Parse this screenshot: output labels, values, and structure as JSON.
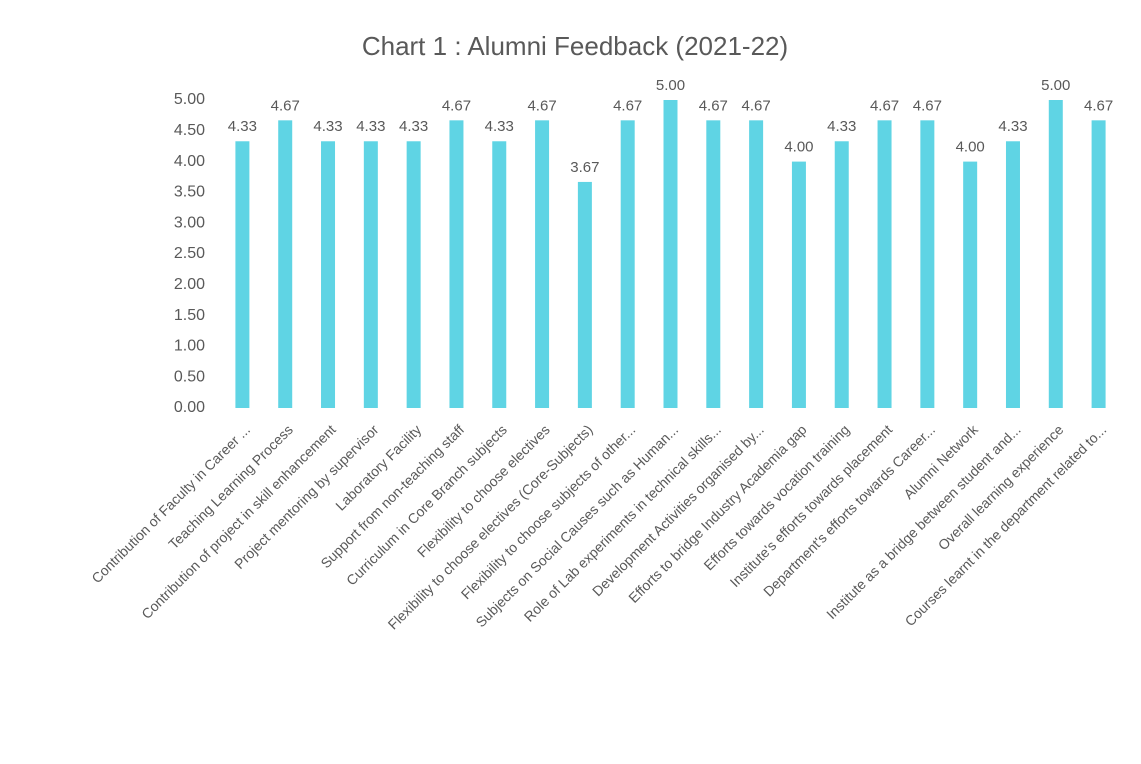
{
  "chart_data": {
    "type": "bar",
    "title": "Chart 1 : Alumni Feedback (2021-22)",
    "categories": [
      "Contribution of Faculty in Career ...",
      "Teaching Learning Process",
      "Contribution of project in skill enhancement",
      "Project mentoring by supervisor",
      "Laboratory Facility",
      "Support from non-teaching staff",
      "Curriculum in Core Branch subjects",
      "Flexibility to choose electives",
      "Flexibility to choose electives (Core-Subjects)",
      "Flexibility to choose subjects of other...",
      "Subjects on Social Causes such as Human...",
      "Role of Lab experiments in technical skills...",
      "Development Activities organised by...",
      "Efforts to bridge Industry Academia gap",
      "Efforts towards vocation training",
      "Institute's efforts towards placement",
      "Department's efforts towards Career...",
      "Alumni Network",
      "Institute as a bridge between student and...",
      "Overall learning experience",
      "Courses learnt in the department related to..."
    ],
    "values": [
      4.33,
      4.67,
      4.33,
      4.33,
      4.33,
      4.67,
      4.33,
      4.67,
      3.67,
      4.67,
      5.0,
      4.67,
      4.67,
      4.0,
      4.33,
      4.67,
      4.67,
      4.0,
      4.33,
      5.0,
      4.67
    ],
    "value_labels": [
      "4.33",
      "4.67",
      "4.33",
      "4.33",
      "4.33",
      "4.67",
      "4.33",
      "4.67",
      "3.67",
      "4.67",
      "5.00",
      "4.67",
      "4.67",
      "4.00",
      "4.33",
      "4.67",
      "4.67",
      "4.00",
      "4.33",
      "5.00",
      "4.67"
    ],
    "color": "#5fd4e4",
    "ylim": [
      0,
      5
    ],
    "yticks": [
      {
        "value": 0,
        "label": "0.00"
      },
      {
        "value": 0.5,
        "label": "0.50"
      },
      {
        "value": 1,
        "label": "1.00"
      },
      {
        "value": 1.5,
        "label": "1.50"
      },
      {
        "value": 2,
        "label": "2.00"
      },
      {
        "value": 2.5,
        "label": "2.50"
      },
      {
        "value": 3,
        "label": "3.00"
      },
      {
        "value": 3.5,
        "label": "3.50"
      },
      {
        "value": 4,
        "label": "4.00"
      },
      {
        "value": 4.5,
        "label": "4.50"
      },
      {
        "value": 5,
        "label": "5.00"
      }
    ],
    "grid": false
  }
}
